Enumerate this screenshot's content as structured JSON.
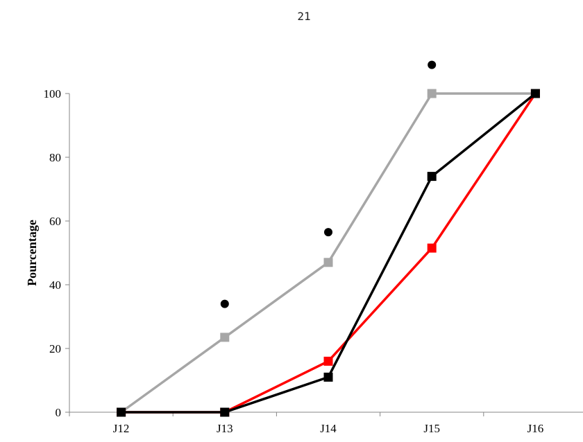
{
  "page_number": "21",
  "chart_data": {
    "type": "line",
    "title": "",
    "xlabel": "",
    "ylabel": "Pourcentage",
    "ylim": [
      0,
      100
    ],
    "yticks": [
      0,
      20,
      40,
      60,
      80,
      100
    ],
    "categories": [
      "J12",
      "J13",
      "J14",
      "J15",
      "J16"
    ],
    "grid": false,
    "legend": "none",
    "series": [
      {
        "color": "#a6a6a6",
        "marker": "square",
        "values": [
          0,
          23.5,
          47,
          100,
          100
        ]
      },
      {
        "color": "#ff0000",
        "marker": "square",
        "values": [
          0,
          0,
          16,
          51.5,
          100
        ]
      },
      {
        "color": "#000000",
        "marker": "square",
        "values": [
          0,
          0,
          11,
          74,
          100
        ]
      },
      {
        "color": "#000000",
        "marker": "circle",
        "line": false,
        "values": [
          null,
          34,
          56.5,
          109,
          null
        ]
      }
    ]
  }
}
